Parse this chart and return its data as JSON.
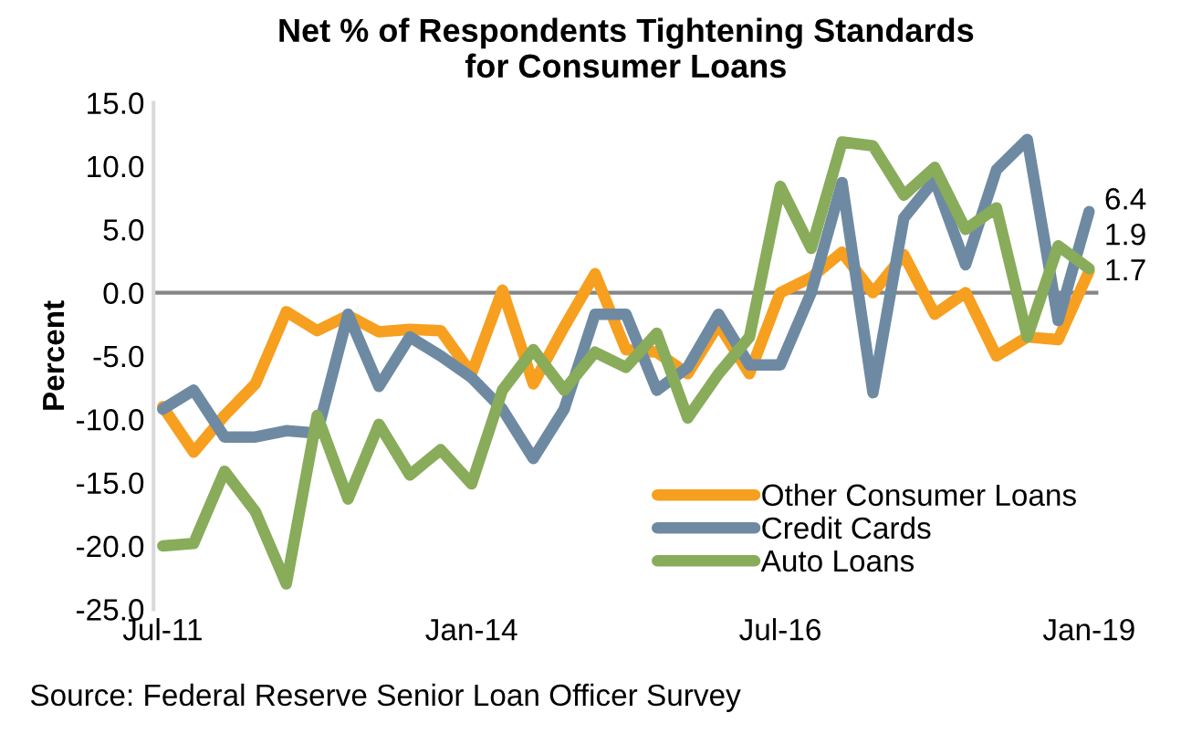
{
  "chart_data": {
    "type": "line",
    "title": "Net % of Respondents Tightening Standards\nfor Consumer Loans",
    "ylabel": "Percent",
    "categories": [
      "Jul-11",
      null,
      null,
      null,
      null,
      null,
      null,
      null,
      null,
      null,
      "Jan-14",
      null,
      null,
      null,
      null,
      null,
      null,
      null,
      null,
      null,
      "Jul-16",
      null,
      null,
      null,
      null,
      null,
      null,
      null,
      null,
      null,
      "Jan-19"
    ],
    "series": [
      {
        "name": "Other Consumer Loans",
        "color": "#f79f1f",
        "values": [
          -9.0,
          -12.6,
          -9.7,
          -7.2,
          -1.5,
          -3.0,
          -1.8,
          -3.1,
          -2.9,
          -3.0,
          -6.4,
          0.2,
          -7.2,
          -2.7,
          1.5,
          -4.5,
          -4.7,
          -6.4,
          -2.5,
          -6.4,
          0.0,
          1.2,
          3.2,
          0.0,
          3.0,
          -1.7,
          0.0,
          -5.0,
          -3.5,
          -3.7,
          1.7
        ],
        "value_labels": [
          null,
          null,
          null,
          null,
          null,
          null,
          null,
          null,
          null,
          null,
          null,
          null,
          null,
          null,
          null,
          null,
          null,
          null,
          null,
          null,
          null,
          null,
          null,
          null,
          null,
          null,
          null,
          null,
          null,
          null,
          "1.7"
        ]
      },
      {
        "name": "Credit Cards",
        "color": "#6e8aa3",
        "values": [
          -9.2,
          -7.7,
          -11.4,
          -11.4,
          -10.9,
          -11.1,
          -1.7,
          -7.4,
          -3.5,
          -5.0,
          -6.7,
          -9.2,
          -13.1,
          -9.2,
          -1.7,
          -1.7,
          -7.7,
          -5.9,
          -1.7,
          -5.7,
          -5.7,
          0.0,
          8.7,
          -7.9,
          5.9,
          8.9,
          2.2,
          9.7,
          12.1,
          -2.2,
          6.4
        ],
        "value_labels": [
          null,
          null,
          null,
          null,
          null,
          null,
          null,
          null,
          null,
          null,
          null,
          null,
          null,
          null,
          null,
          null,
          null,
          null,
          null,
          null,
          null,
          null,
          null,
          null,
          null,
          null,
          null,
          null,
          null,
          null,
          "6.4"
        ]
      },
      {
        "name": "Auto Loans",
        "color": "#88ac5a",
        "values": [
          -20.0,
          -19.8,
          -14.1,
          -17.3,
          -23.0,
          -9.7,
          -16.3,
          -10.4,
          -14.4,
          -12.4,
          -15.1,
          -7.7,
          -4.5,
          -7.7,
          -4.7,
          -5.9,
          -3.2,
          -9.9,
          -6.4,
          -3.5,
          8.4,
          3.5,
          11.9,
          11.6,
          7.7,
          9.9,
          5.0,
          6.7,
          -3.5,
          3.7,
          1.9
        ],
        "value_labels": [
          null,
          null,
          null,
          null,
          null,
          null,
          null,
          null,
          null,
          null,
          null,
          null,
          null,
          null,
          null,
          null,
          null,
          null,
          null,
          null,
          null,
          null,
          null,
          null,
          null,
          null,
          null,
          null,
          null,
          null,
          "1.9"
        ]
      }
    ],
    "ylim": [
      -25,
      15
    ],
    "yticks": [
      {
        "value": -25,
        "label": "-25.0"
      },
      {
        "value": -20,
        "label": "-20.0"
      },
      {
        "value": -15,
        "label": "-15.0"
      },
      {
        "value": -10,
        "label": "-10.0"
      },
      {
        "value": -5,
        "label": "-5.0"
      },
      {
        "value": 0,
        "label": "0.0"
      },
      {
        "value": 5,
        "label": "5.0"
      },
      {
        "value": 10,
        "label": "10.0"
      },
      {
        "value": 15,
        "label": "15.0"
      }
    ],
    "ref_lines": [
      {
        "axis": "y",
        "value": 0,
        "color": "#868686"
      }
    ],
    "legend": "bottom right",
    "grid": false,
    "marker": "none",
    "line_style": "solid",
    "annotations": [
      "Source: Federal Reserve Senior Loan Officer Survey"
    ]
  }
}
